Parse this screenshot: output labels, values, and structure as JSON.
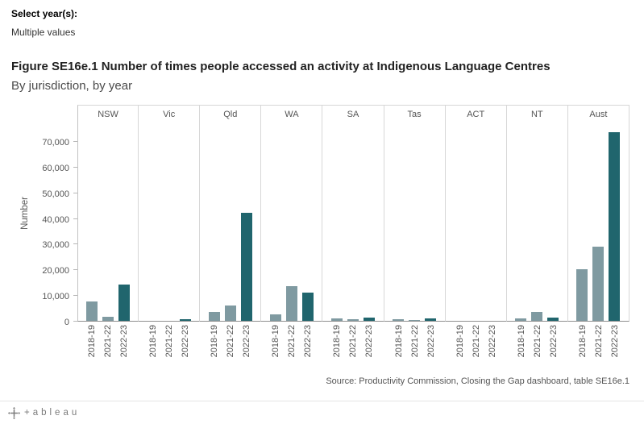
{
  "filter": {
    "label": "Select year(s):",
    "value": "Multiple values"
  },
  "chart_data": {
    "type": "bar",
    "title": "Figure SE16e.1  Number of times people accessed an activity at Indigenous Language Centres",
    "subtitle": "By jurisdiction, by year",
    "ylabel": "Number",
    "ylim": [
      0,
      74000
    ],
    "grid": false,
    "legend": false,
    "panels": [
      "NSW",
      "Vic",
      "Qld",
      "WA",
      "SA",
      "Tas",
      "ACT",
      "NT",
      "Aust"
    ],
    "categories": [
      "2018-19",
      "2021-22",
      "2022-23"
    ],
    "category_colors": [
      "#7f9aa1",
      "#7f9aa1",
      "#20656d"
    ],
    "yticks": [
      {
        "value": 0,
        "label": "0"
      },
      {
        "value": 10000,
        "label": "10,000"
      },
      {
        "value": 20000,
        "label": "20,000"
      },
      {
        "value": 30000,
        "label": "30,000"
      },
      {
        "value": 40000,
        "label": "40,000"
      },
      {
        "value": 50000,
        "label": "50,000"
      },
      {
        "value": 60000,
        "label": "60,000"
      },
      {
        "value": 70000,
        "label": "70,000"
      }
    ],
    "values": {
      "NSW": [
        7500,
        1600,
        14000
      ],
      "Vic": [
        0,
        0,
        600
      ],
      "Qld": [
        3500,
        6000,
        42000
      ],
      "WA": [
        2500,
        13500,
        11000
      ],
      "SA": [
        1000,
        700,
        1300
      ],
      "Tas": [
        500,
        400,
        800
      ],
      "ACT": [
        0,
        0,
        0
      ],
      "NT": [
        800,
        3500,
        1400
      ],
      "Aust": [
        20000,
        29000,
        73500
      ]
    }
  },
  "source": "Source: Productivity Commission, Closing the Gap dashboard, table SE16e.1",
  "footer": {
    "wordmark": "+ableau"
  }
}
